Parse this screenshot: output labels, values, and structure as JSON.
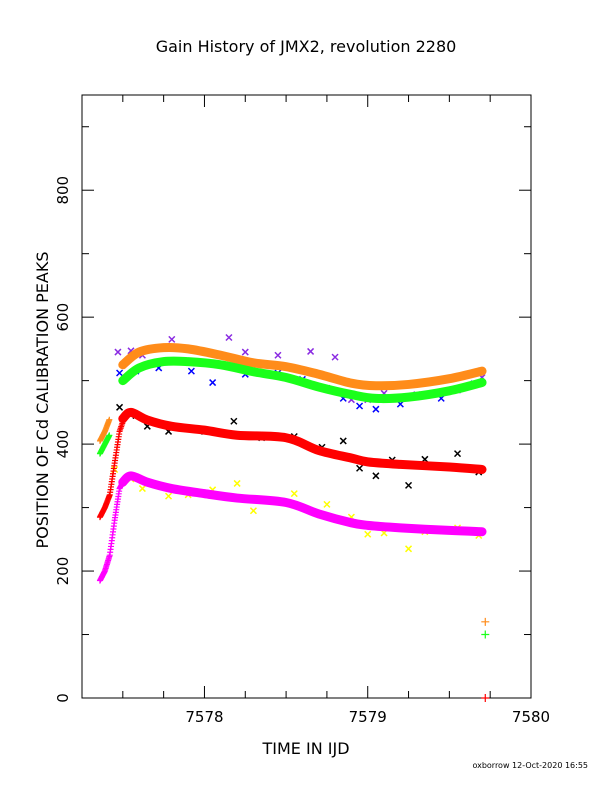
{
  "chart_data": {
    "type": "scatter",
    "title": "Gain History of JMX2, revolution 2280",
    "xlabel": "TIME IN IJD",
    "ylabel": "POSITION OF Cd CALIBRATION PEAKS",
    "xlim": [
      7577.25,
      7580
    ],
    "ylim": [
      0,
      950
    ],
    "xticks": [
      7578,
      7579,
      7580
    ],
    "yticks": [
      0,
      200,
      400,
      600,
      800
    ],
    "grid": false,
    "footer": "oxborrow 12-Oct-2020 16:55",
    "colors": {
      "orange": "#ff8c1a",
      "green": "#1aff1a",
      "red": "#ff0000",
      "magenta": "#ff00ff",
      "black": "#000000",
      "blue": "#0000ff",
      "purple": "#8a2be2",
      "yellow": "#ffff00"
    },
    "fit_series": [
      {
        "color": "orange",
        "x": [
          7577.5,
          7577.6,
          7577.75,
          7577.9,
          7578.1,
          7578.3,
          7578.5,
          7578.7,
          7578.9,
          7579.05,
          7579.25,
          7579.5,
          7579.7
        ],
        "y": [
          525,
          545,
          552,
          550,
          540,
          528,
          522,
          510,
          496,
          492,
          494,
          503,
          515
        ]
      },
      {
        "color": "green",
        "x": [
          7577.5,
          7577.6,
          7577.75,
          7577.9,
          7578.1,
          7578.3,
          7578.5,
          7578.7,
          7578.9,
          7579.05,
          7579.25,
          7579.5,
          7579.7
        ],
        "y": [
          500,
          520,
          530,
          530,
          525,
          514,
          505,
          490,
          478,
          472,
          474,
          484,
          497
        ]
      },
      {
        "color": "red",
        "x": [
          7577.5,
          7577.55,
          7577.65,
          7577.8,
          7578.0,
          7578.2,
          7578.5,
          7578.7,
          7578.9,
          7579.0,
          7579.2,
          7579.5,
          7579.7
        ],
        "y": [
          440,
          450,
          438,
          428,
          422,
          414,
          410,
          390,
          378,
          372,
          368,
          364,
          360
        ]
      },
      {
        "color": "magenta",
        "x": [
          7577.5,
          7577.55,
          7577.65,
          7577.8,
          7578.0,
          7578.2,
          7578.5,
          7578.7,
          7578.9,
          7579.0,
          7579.2,
          7579.5,
          7579.7
        ],
        "y": [
          340,
          350,
          340,
          330,
          322,
          315,
          308,
          290,
          276,
          272,
          268,
          264,
          262
        ]
      }
    ],
    "rise_series": [
      {
        "color": "orange",
        "x": [
          7577.36,
          7577.39,
          7577.42
        ],
        "y": [
          405,
          420,
          440
        ]
      },
      {
        "color": "green",
        "x": [
          7577.36,
          7577.39,
          7577.42
        ],
        "y": [
          385,
          400,
          415
        ]
      },
      {
        "color": "red",
        "x": [
          7577.36,
          7577.39,
          7577.42,
          7577.45,
          7577.48,
          7577.52
        ],
        "y": [
          285,
          300,
          320,
          370,
          420,
          450
        ]
      },
      {
        "color": "magenta",
        "x": [
          7577.36,
          7577.39,
          7577.42,
          7577.45,
          7577.48,
          7577.52
        ],
        "y": [
          185,
          200,
          225,
          280,
          330,
          350
        ]
      }
    ],
    "scatter_series": [
      {
        "color": "purple",
        "x": [
          7577.47,
          7577.55,
          7577.62,
          7577.8,
          7577.95,
          7578.15,
          7578.25,
          7578.45,
          7578.65,
          7578.8,
          7578.9,
          7579.0,
          7579.1,
          7579.3,
          7579.55,
          7579.7
        ],
        "y": [
          545,
          547,
          540,
          565,
          548,
          568,
          545,
          540,
          546,
          537,
          470,
          470,
          480,
          478,
          485,
          505
        ]
      },
      {
        "color": "blue",
        "x": [
          7577.48,
          7577.58,
          7577.72,
          7577.92,
          7578.05,
          7578.25,
          7578.45,
          7578.6,
          7578.75,
          7578.85,
          7578.95,
          7579.05,
          7579.2,
          7579.45,
          7579.65
        ],
        "y": [
          512,
          515,
          520,
          515,
          497,
          510,
          512,
          502,
          488,
          472,
          460,
          455,
          463,
          472,
          495
        ]
      },
      {
        "color": "black",
        "x": [
          7577.48,
          7577.58,
          7577.65,
          7577.78,
          7578.0,
          7578.18,
          7578.35,
          7578.55,
          7578.72,
          7578.85,
          7578.95,
          7579.05,
          7579.15,
          7579.25,
          7579.35,
          7579.55,
          7579.68
        ],
        "y": [
          458,
          445,
          428,
          420,
          420,
          436,
          410,
          412,
          395,
          405,
          362,
          350,
          375,
          335,
          376,
          385,
          356
        ]
      },
      {
        "color": "yellow",
        "x": [
          7577.45,
          7577.55,
          7577.62,
          7577.78,
          7577.9,
          7578.05,
          7578.2,
          7578.3,
          7578.55,
          7578.75,
          7578.9,
          7579.0,
          7579.1,
          7579.25,
          7579.35,
          7579.55,
          7579.68
        ],
        "y": [
          360,
          345,
          330,
          318,
          320,
          328,
          338,
          295,
          322,
          305,
          285,
          258,
          260,
          235,
          262,
          268,
          256
        ]
      }
    ],
    "legend_marks": [
      {
        "color": "orange",
        "x": 7579.72,
        "y": 120
      },
      {
        "color": "green",
        "x": 7579.72,
        "y": 100
      },
      {
        "color": "red",
        "x": 7579.72,
        "y": 0
      }
    ]
  }
}
